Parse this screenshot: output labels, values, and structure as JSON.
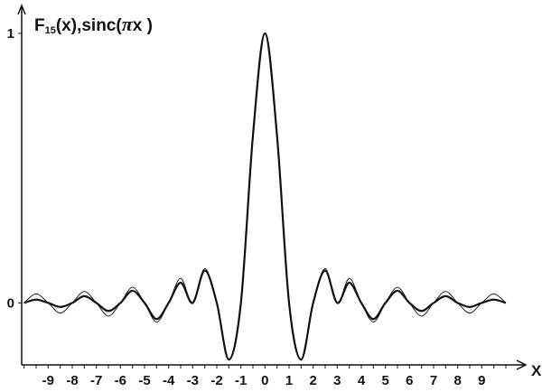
{
  "chart_data": {
    "type": "line",
    "title": "",
    "ylabel_parts": {
      "func": "F",
      "sub": "15",
      "arg": "(x),sinc(",
      "pi": "π",
      "end": "x )"
    },
    "xlabel": "X",
    "xlim": [
      -10.1,
      10.3
    ],
    "ylim": [
      -0.23,
      1.05
    ],
    "x_ticks": [
      -9,
      -8,
      -7,
      -6,
      -5,
      -4,
      -3,
      -2,
      -1,
      0,
      1,
      2,
      3,
      4,
      5,
      6,
      7,
      8,
      9
    ],
    "x_tick_labels": [
      "-9",
      "-8",
      "-7",
      "-6",
      "-5",
      "-4",
      "-3",
      "-2",
      "-1",
      "0",
      "1",
      "2",
      "3",
      "4",
      "5",
      "6",
      "7",
      "8",
      "9"
    ],
    "y_ticks": [
      0,
      1
    ],
    "y_tick_labels": [
      "0",
      "1"
    ],
    "grid": false,
    "legend": false,
    "series": [
      {
        "key": "F15",
        "style": "thick",
        "x": [
          -10,
          -9.5,
          -9,
          -8.5,
          -8,
          -7.5,
          -7,
          -6.5,
          -6,
          -5.5,
          -5,
          -4.5,
          -4,
          -3.5,
          -3,
          -2.5,
          -2,
          -1.5,
          -1,
          -0.5,
          0,
          0.5,
          1,
          1.5,
          2,
          2.5,
          3,
          3.5,
          4,
          4.5,
          5,
          5.5,
          6,
          6.5,
          7,
          7.5,
          8,
          8.5,
          9,
          9.5,
          10
        ],
        "y": [
          0,
          0.012,
          0,
          -0.015,
          0,
          0.025,
          0,
          -0.03,
          0,
          0.045,
          0,
          -0.06,
          0,
          0.075,
          0,
          0.12,
          0,
          -0.21,
          0,
          0.62,
          1.0,
          0.62,
          0,
          -0.21,
          0,
          0.12,
          0,
          0.075,
          0,
          -0.06,
          0,
          0.045,
          0,
          -0.03,
          0,
          0.025,
          0,
          -0.015,
          0,
          0.012,
          0
        ]
      },
      {
        "key": "sinc",
        "style": "thin",
        "x": [
          -10,
          -9.5,
          -9,
          -8.5,
          -8,
          -7.5,
          -7,
          -6.5,
          -6,
          -5.5,
          -5,
          -4.5,
          -4,
          -3.5,
          -3,
          -2.5,
          -2,
          -1.5,
          -1,
          -0.5,
          0,
          0.5,
          1,
          1.5,
          2,
          2.5,
          3,
          3.5,
          4,
          4.5,
          5,
          5.5,
          6,
          6.5,
          7,
          7.5,
          8,
          8.5,
          9,
          9.5,
          10
        ],
        "y": [
          0,
          0.0335,
          0,
          -0.0374,
          0,
          0.0424,
          0,
          -0.049,
          0,
          0.0579,
          0,
          -0.0707,
          0,
          0.0909,
          0,
          0.1273,
          0,
          -0.2122,
          0,
          0.6366,
          1.0,
          0.6366,
          0,
          -0.2122,
          0,
          0.1273,
          0,
          0.0909,
          0,
          -0.0707,
          0,
          0.0579,
          0,
          -0.049,
          0,
          0.0424,
          0,
          -0.0374,
          0,
          0.0335,
          0
        ]
      }
    ]
  }
}
